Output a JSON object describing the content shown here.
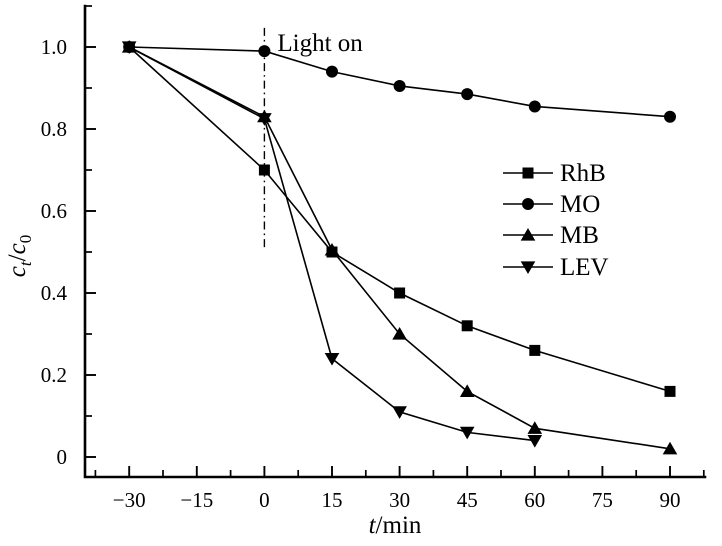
{
  "figure": {
    "background": "#ffffff",
    "ink_color": "#000000"
  },
  "chart_data": {
    "type": "line",
    "title": "",
    "grid": false,
    "xlabel": {
      "var": "t",
      "unit": "/min"
    },
    "ylabel": {
      "var1": "c",
      "sub1": "t",
      "slash": "/",
      "var2": "c",
      "sub2": "0"
    },
    "x_axis": {
      "ticks": [
        -30,
        -15,
        0,
        15,
        30,
        45,
        60,
        75,
        90
      ],
      "tick_labels": [
        "−30",
        "−15",
        "0",
        "15",
        "30",
        "45",
        "60",
        "75",
        "90"
      ],
      "range": [
        -39.8,
        97.8
      ],
      "minor_interval": 7.5
    },
    "y_axis": {
      "ticks": [
        0,
        0.2,
        0.4,
        0.6,
        0.8,
        1.0
      ],
      "tick_labels": [
        "0",
        "0.2",
        "0.4",
        "0.6",
        "0.8",
        "1.0"
      ],
      "range": [
        -0.05,
        1.1
      ],
      "minor_interval": 0.1
    },
    "annotation": {
      "text": "Light on",
      "line_x": 0,
      "line_y_from": 0.512,
      "line_y_to": 1.054,
      "line_style": "dash-dot"
    },
    "legend": {
      "position": "center-right",
      "entries": [
        {
          "label": "RhB",
          "marker": "square"
        },
        {
          "label": "MO",
          "marker": "circle"
        },
        {
          "label": "MB",
          "marker": "triangle-up"
        },
        {
          "label": "LEV",
          "marker": "triangle-down"
        }
      ]
    },
    "series": [
      {
        "name": "RhB",
        "marker": "square",
        "points": [
          [
            -30,
            1.0
          ],
          [
            0,
            0.7
          ],
          [
            15,
            0.5
          ],
          [
            30,
            0.4
          ],
          [
            45,
            0.32
          ],
          [
            60,
            0.26
          ],
          [
            90,
            0.16
          ]
        ]
      },
      {
        "name": "MO",
        "marker": "circle",
        "points": [
          [
            -30,
            1.0
          ],
          [
            0,
            0.99
          ],
          [
            15,
            0.94
          ],
          [
            30,
            0.905
          ],
          [
            45,
            0.885
          ],
          [
            60,
            0.855
          ],
          [
            90,
            0.83
          ]
        ]
      },
      {
        "name": "MB",
        "marker": "triangle-up",
        "points": [
          [
            -30,
            1.0
          ],
          [
            0,
            0.83
          ],
          [
            15,
            0.505
          ],
          [
            30,
            0.3
          ],
          [
            45,
            0.16
          ],
          [
            60,
            0.07
          ],
          [
            90,
            0.02
          ]
        ]
      },
      {
        "name": "LEV",
        "marker": "triangle-down",
        "points": [
          [
            -30,
            1.0
          ],
          [
            0,
            0.825
          ],
          [
            15,
            0.24
          ],
          [
            30,
            0.11
          ],
          [
            45,
            0.06
          ],
          [
            60,
            0.04
          ]
        ]
      }
    ]
  }
}
